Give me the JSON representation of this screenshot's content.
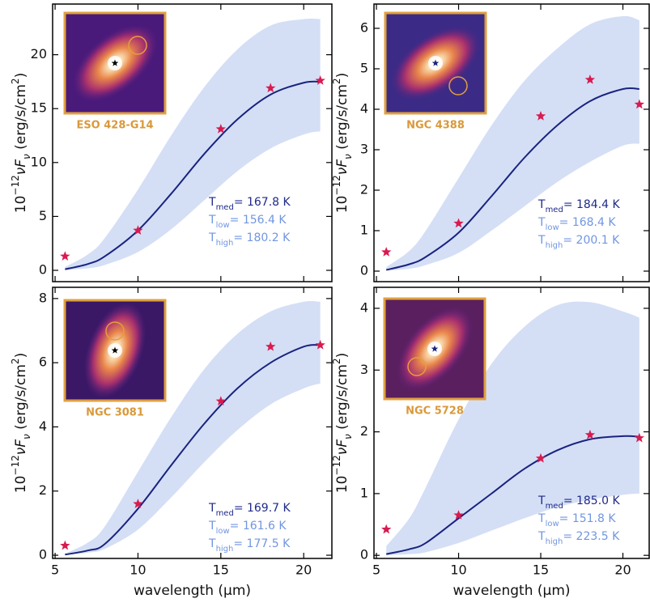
{
  "chart_data": [
    {
      "type": "line",
      "xlim": [
        4.85,
        21.7
      ],
      "ylim": [
        -1.05,
        24.7
      ],
      "xticks": [
        5,
        10,
        15,
        20
      ],
      "yticks": [
        0,
        5,
        10,
        15,
        20
      ],
      "show_xtick_labels": false,
      "ylabel": {
        "base": "10",
        "exp": "−12",
        "main": "νF",
        "sub": "ν",
        "unit": " (erg/s/cm",
        "unit_exp": "2",
        "close": ")"
      },
      "inset_label": "ESO 428-G14",
      "points": {
        "x": [
          5.6,
          10,
          15,
          18,
          21
        ],
        "values": [
          1.3,
          3.7,
          13.1,
          16.9,
          17.6
        ],
        "color": "#d81b4f"
      },
      "model": {
        "x": [
          5.6,
          7,
          8,
          10,
          12,
          14,
          16,
          18,
          20,
          21
        ],
        "values": [
          0.1,
          0.6,
          1.3,
          3.7,
          7.1,
          10.8,
          14.0,
          16.3,
          17.4,
          17.5
        ],
        "low": [
          0.02,
          0.2,
          0.5,
          1.7,
          3.8,
          6.5,
          9.2,
          11.3,
          12.6,
          12.9
        ],
        "high": [
          0.3,
          1.5,
          3.0,
          7.5,
          12.5,
          17.0,
          20.5,
          22.7,
          23.3,
          23.3
        ],
        "color": "#1a237e",
        "band_color": "#cfdcf5"
      },
      "annotations": [
        {
          "symbol": "T",
          "subscript": "med",
          "text": "= 167.8  K",
          "color": "#1f2a8a"
        },
        {
          "symbol": "T",
          "subscript": "low",
          "text": "= 156.4  K",
          "color": "#7196e0"
        },
        {
          "symbol": "T",
          "subscript": "high",
          "text": "= 180.2  K",
          "color": "#7196e0"
        }
      ]
    },
    {
      "type": "line",
      "xlim": [
        4.85,
        21.6
      ],
      "ylim": [
        -0.26,
        6.6
      ],
      "xticks": [
        5,
        10,
        15,
        20
      ],
      "yticks": [
        0,
        1,
        2,
        3,
        4,
        5,
        6
      ],
      "show_xtick_labels": false,
      "ylabel": {
        "base": "10",
        "exp": "−12",
        "main": "νF",
        "sub": "ν",
        "unit": " (erg/s/cm",
        "unit_exp": "2",
        "close": ")"
      },
      "inset_label": "NGC 4388",
      "points": {
        "x": [
          5.6,
          10,
          15,
          18,
          21
        ],
        "values": [
          0.47,
          1.18,
          3.83,
          4.73,
          4.12
        ],
        "color": "#d81b4f"
      },
      "model": {
        "x": [
          5.6,
          7,
          8,
          10,
          12,
          14,
          16,
          18,
          20,
          21
        ],
        "values": [
          0.03,
          0.17,
          0.35,
          0.95,
          1.85,
          2.8,
          3.6,
          4.2,
          4.5,
          4.5
        ],
        "low": [
          0.01,
          0.06,
          0.15,
          0.45,
          1.0,
          1.6,
          2.2,
          2.7,
          3.1,
          3.15
        ],
        "high": [
          0.1,
          0.5,
          1.0,
          2.3,
          3.6,
          4.7,
          5.5,
          6.1,
          6.3,
          6.2
        ],
        "color": "#1a237e",
        "band_color": "#cfdcf5"
      },
      "annotations": [
        {
          "symbol": "T",
          "subscript": "med",
          "text": "= 184.4  K",
          "color": "#1f2a8a"
        },
        {
          "symbol": "T",
          "subscript": "low",
          "text": "= 168.4  K",
          "color": "#7196e0"
        },
        {
          "symbol": "T",
          "subscript": "high",
          "text": "= 200.1  K",
          "color": "#7196e0"
        }
      ]
    },
    {
      "type": "line",
      "xlim": [
        4.85,
        21.7
      ],
      "ylim": [
        -0.1,
        8.35
      ],
      "xticks": [
        5,
        10,
        15,
        20
      ],
      "yticks": [
        0,
        2,
        4,
        6,
        8
      ],
      "show_xtick_labels": true,
      "xlabel": "wavelength (µm)",
      "ylabel": {
        "base": "10",
        "exp": "−12",
        "main": "νF",
        "sub": "ν",
        "unit": " (erg/s/cm",
        "unit_exp": "2",
        "close": ")"
      },
      "inset_label": "NGC 3081",
      "points": {
        "x": [
          5.6,
          10,
          15,
          18,
          21
        ],
        "values": [
          0.3,
          1.6,
          4.8,
          6.5,
          6.55
        ],
        "color": "#d81b4f"
      },
      "model": {
        "x": [
          5.6,
          7,
          8,
          10,
          12,
          14,
          16,
          18,
          20,
          21
        ],
        "values": [
          0.02,
          0.15,
          0.35,
          1.45,
          2.8,
          4.1,
          5.2,
          6.0,
          6.5,
          6.55
        ],
        "low": [
          0.01,
          0.08,
          0.2,
          0.8,
          1.8,
          2.9,
          3.9,
          4.7,
          5.2,
          5.35
        ],
        "high": [
          0.05,
          0.4,
          0.9,
          2.6,
          4.3,
          5.8,
          6.9,
          7.6,
          7.9,
          7.9
        ],
        "color": "#1a237e",
        "band_color": "#cfdcf5"
      },
      "annotations": [
        {
          "symbol": "T",
          "subscript": "med",
          "text": "= 169.7  K",
          "color": "#1f2a8a"
        },
        {
          "symbol": "T",
          "subscript": "low",
          "text": "= 161.6  K",
          "color": "#7196e0"
        },
        {
          "symbol": "T",
          "subscript": "high",
          "text": "= 177.5  K",
          "color": "#7196e0"
        }
      ]
    },
    {
      "type": "line",
      "xlim": [
        4.85,
        21.6
      ],
      "ylim": [
        -0.05,
        4.34
      ],
      "xticks": [
        5,
        10,
        15,
        20
      ],
      "yticks": [
        0,
        1,
        2,
        3,
        4
      ],
      "show_xtick_labels": true,
      "xlabel": "wavelength (µm)",
      "ylabel": {
        "base": "10",
        "exp": "−12",
        "main": "νF",
        "sub": "ν",
        "unit": " (erg/s/cm",
        "unit_exp": "2",
        "close": ")"
      },
      "inset_label": "NGC 5728",
      "points": {
        "x": [
          5.6,
          10,
          15,
          18,
          21
        ],
        "values": [
          0.42,
          0.65,
          1.57,
          1.95,
          1.9
        ],
        "color": "#d81b4f"
      },
      "model": {
        "x": [
          5.6,
          7,
          8,
          10,
          12,
          14,
          16,
          18,
          20,
          21
        ],
        "values": [
          0.02,
          0.1,
          0.2,
          0.6,
          1.0,
          1.4,
          1.7,
          1.88,
          1.93,
          1.92
        ],
        "low": [
          0.0,
          0.02,
          0.05,
          0.2,
          0.4,
          0.6,
          0.78,
          0.9,
          0.98,
          1.0
        ],
        "high": [
          0.15,
          0.6,
          1.1,
          2.2,
          3.1,
          3.7,
          4.05,
          4.1,
          3.95,
          3.85
        ],
        "color": "#1a237e",
        "band_color": "#cfdcf5"
      },
      "annotations": [
        {
          "symbol": "T",
          "subscript": "med",
          "text": "= 185.0  K",
          "color": "#1f2a8a"
        },
        {
          "symbol": "T",
          "subscript": "low",
          "text": "= 151.8  K",
          "color": "#7196e0"
        },
        {
          "symbol": "T",
          "subscript": "high",
          "text": "= 223.5  K",
          "color": "#7196e0"
        }
      ]
    }
  ]
}
